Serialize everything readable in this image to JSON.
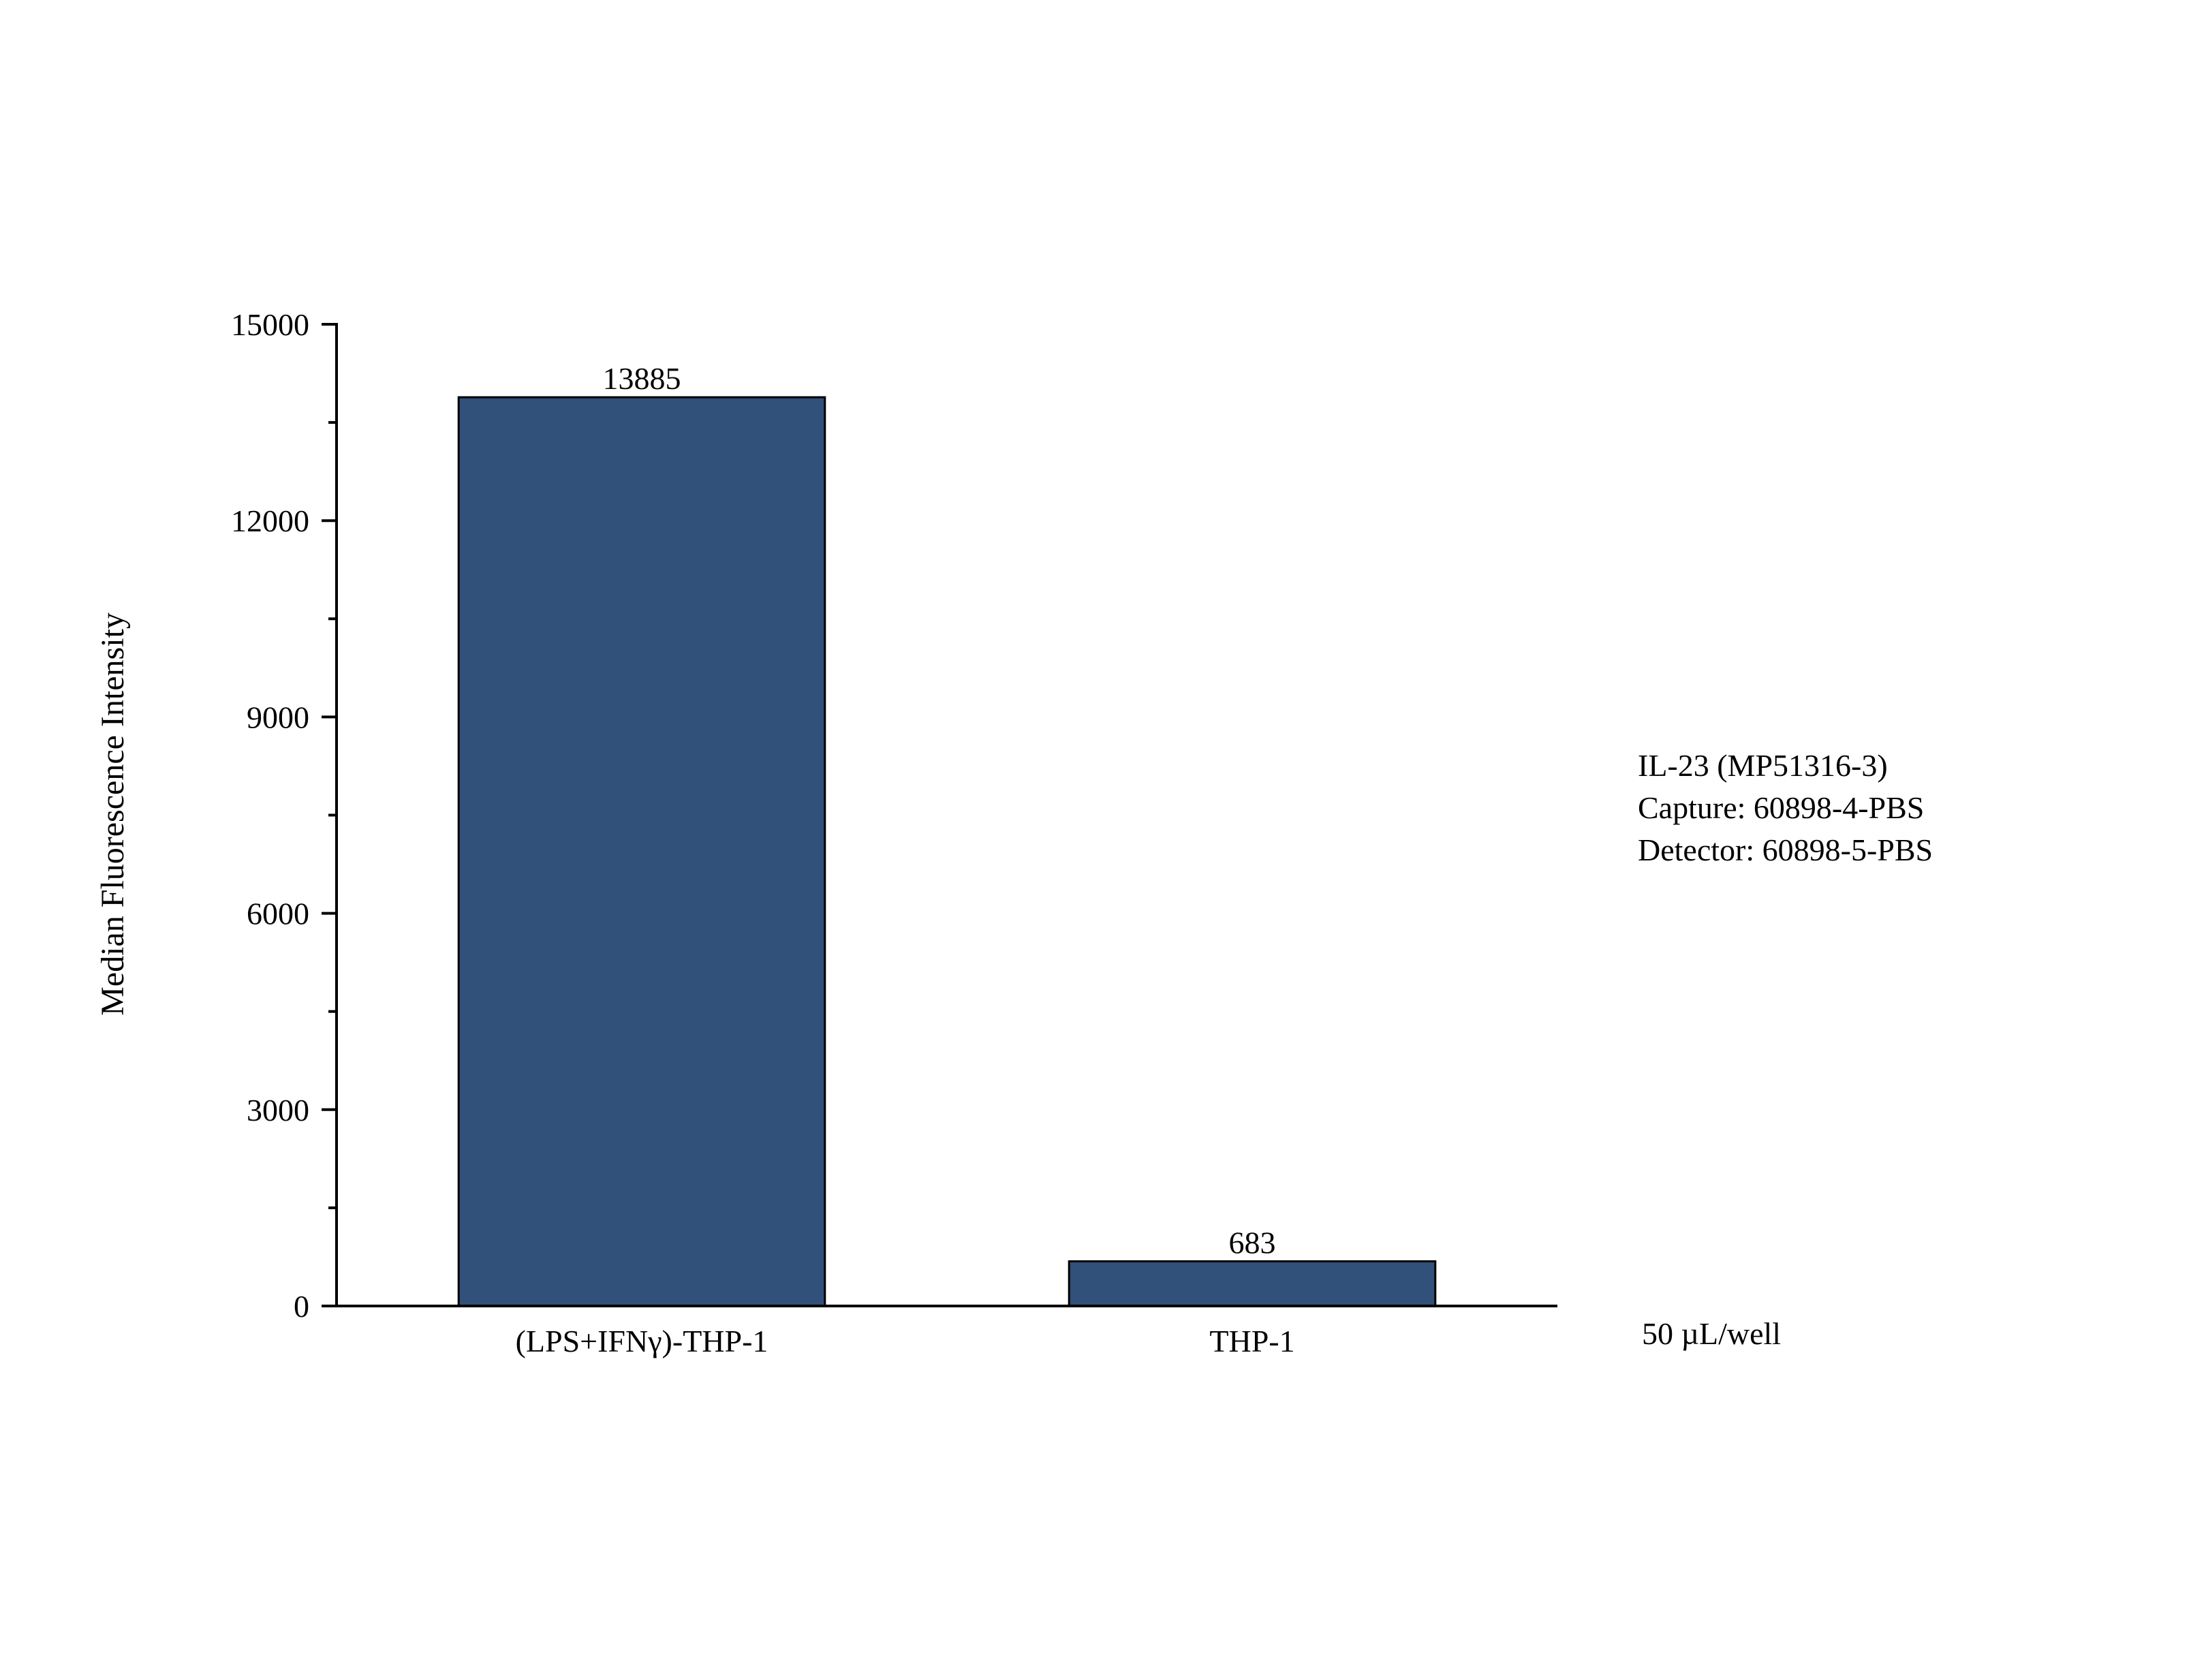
{
  "chart_data": {
    "type": "bar",
    "categories": [
      "(LPS+IFNγ)-THP-1",
      "THP-1"
    ],
    "values": [
      13885,
      683
    ],
    "data_labels": [
      "13885",
      "683"
    ],
    "title": "",
    "xlabel": "",
    "ylabel": "Median Fluorescence Intensity",
    "ylim": [
      0,
      15000
    ],
    "yticks": [
      0,
      3000,
      6000,
      9000,
      12000,
      15000
    ],
    "ytick_labels": [
      "0",
      "3000",
      "6000",
      "9000",
      "12000",
      "15000"
    ],
    "y_minor_step": 1500,
    "grid": false,
    "legend": "none",
    "bar_color": "#31507a",
    "annotations": [
      "IL-23 (MP51316-3)",
      "Capture: 60898-4-PBS",
      "Detector: 60898-5-PBS"
    ],
    "footnote": "50 µL/well"
  }
}
